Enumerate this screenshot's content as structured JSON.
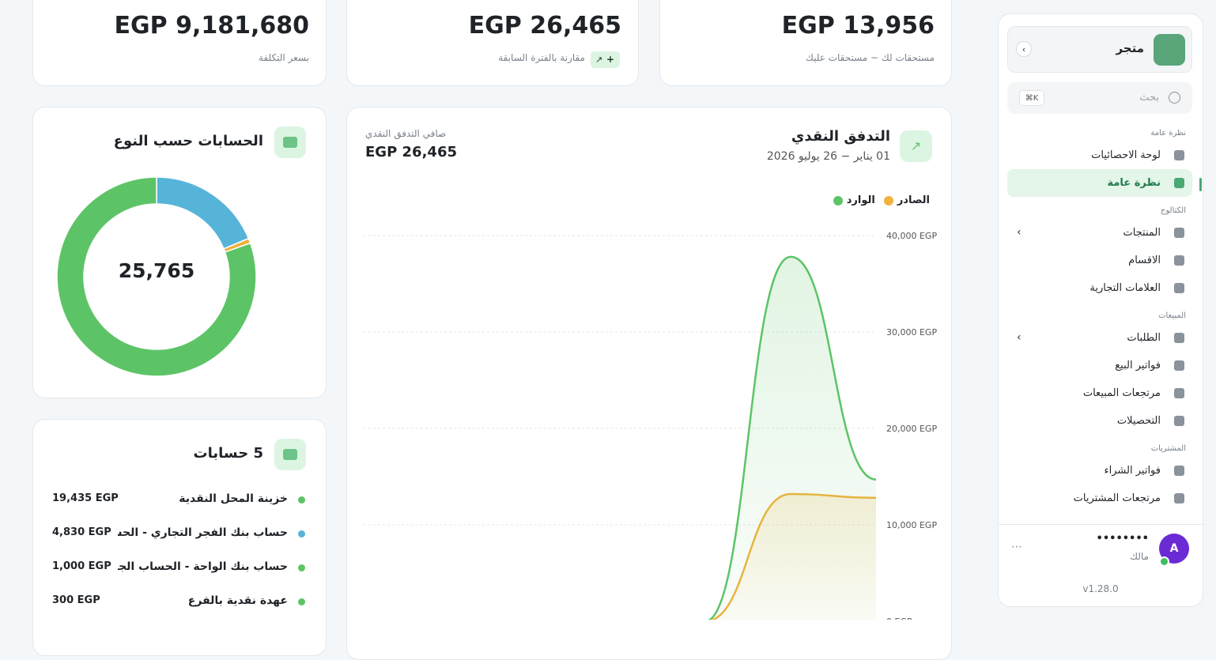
{
  "sidebar": {
    "store": "متجر",
    "search": "بحث",
    "shortcut": "⌘K",
    "sections": [
      {
        "title": "نظرة عامة",
        "items": [
          {
            "label": "لوحة الاحصائيات"
          },
          {
            "label": "نظرة عامة",
            "active": true
          }
        ]
      },
      {
        "title": "الكتالوج",
        "items": [
          {
            "label": "المنتجات",
            "expandable": true
          },
          {
            "label": "الاقسام"
          },
          {
            "label": "العلامات التجارية"
          }
        ]
      },
      {
        "title": "المبيعات",
        "items": [
          {
            "label": "الطلبات",
            "expandable": true
          },
          {
            "label": "فواتير البيع"
          },
          {
            "label": "مرتجعات المبيعات"
          },
          {
            "label": "التحصيلات"
          }
        ]
      },
      {
        "title": "المشتريات",
        "items": [
          {
            "label": "فواتير الشراء"
          },
          {
            "label": "مرتجعات المشتريات"
          }
        ]
      }
    ],
    "user": {
      "initial": "A",
      "name": "••••••••",
      "role": "مالك"
    },
    "version": "v1.28.0"
  },
  "cards": [
    {
      "value": "EGP 13,956",
      "label": "مستحقات لك − مستحقات عليك"
    },
    {
      "value": "EGP 26,465",
      "label": "مقارنة بالفترة السابقة",
      "badge": "+"
    },
    {
      "value": "EGP 9,181,680",
      "label": "بسعر التكلفة"
    }
  ],
  "accounts": {
    "title": "5 حسابات",
    "items": [
      {
        "name": "خزينة المحل النقدية",
        "amount": "19,435 EGP",
        "color": "#5cc466"
      },
      {
        "name": "حساب بنك الفجر التجاري - الحسا...",
        "amount": "4,830 EGP",
        "color": "#56b4d9"
      },
      {
        "name": "حساب بنك الواحة - الحساب الجار...",
        "amount": "1,000 EGP",
        "color": "#5cc466"
      },
      {
        "name": "عهدة نقدية بالفرع",
        "amount": "300 EGP",
        "color": "#5cc466"
      }
    ]
  },
  "chart_data": [
    {
      "type": "pie",
      "donut": true,
      "title": "الحسابات حسب النوع",
      "center_label": "25,765",
      "values": [
        4830,
        200,
        20735
      ],
      "colors": [
        "#56b4d9",
        "#f0ad3c",
        "#5cc466"
      ]
    },
    {
      "type": "area",
      "title": "التدفق النقدي",
      "subtitle": "01 يناير − 26 يوليو 2026",
      "summary_label": "صافي التدفق النقدي",
      "summary_value": "EGP 26,465",
      "categories": [
        null,
        null,
        null,
        null,
        null,
        null,
        null
      ],
      "series": [
        {
          "name": "الصادر",
          "color": "#f0b23c",
          "values": [
            0,
            0,
            0,
            0,
            0,
            13200,
            12800
          ]
        },
        {
          "name": "الوارد",
          "color": "#5cc466",
          "values": [
            0,
            0,
            0,
            0,
            0,
            37800,
            14700
          ]
        }
      ],
      "ylim": [
        0,
        40000
      ],
      "yticks": [
        {
          "value": 0,
          "label": "0 EGP"
        },
        {
          "value": 10000,
          "label": "10,000 EGP"
        },
        {
          "value": 20000,
          "label": "20,000 EGP"
        },
        {
          "value": 30000,
          "label": "30,000 EGP"
        },
        {
          "value": 40000,
          "label": "40,000 EGP"
        }
      ],
      "grid": true
    }
  ]
}
